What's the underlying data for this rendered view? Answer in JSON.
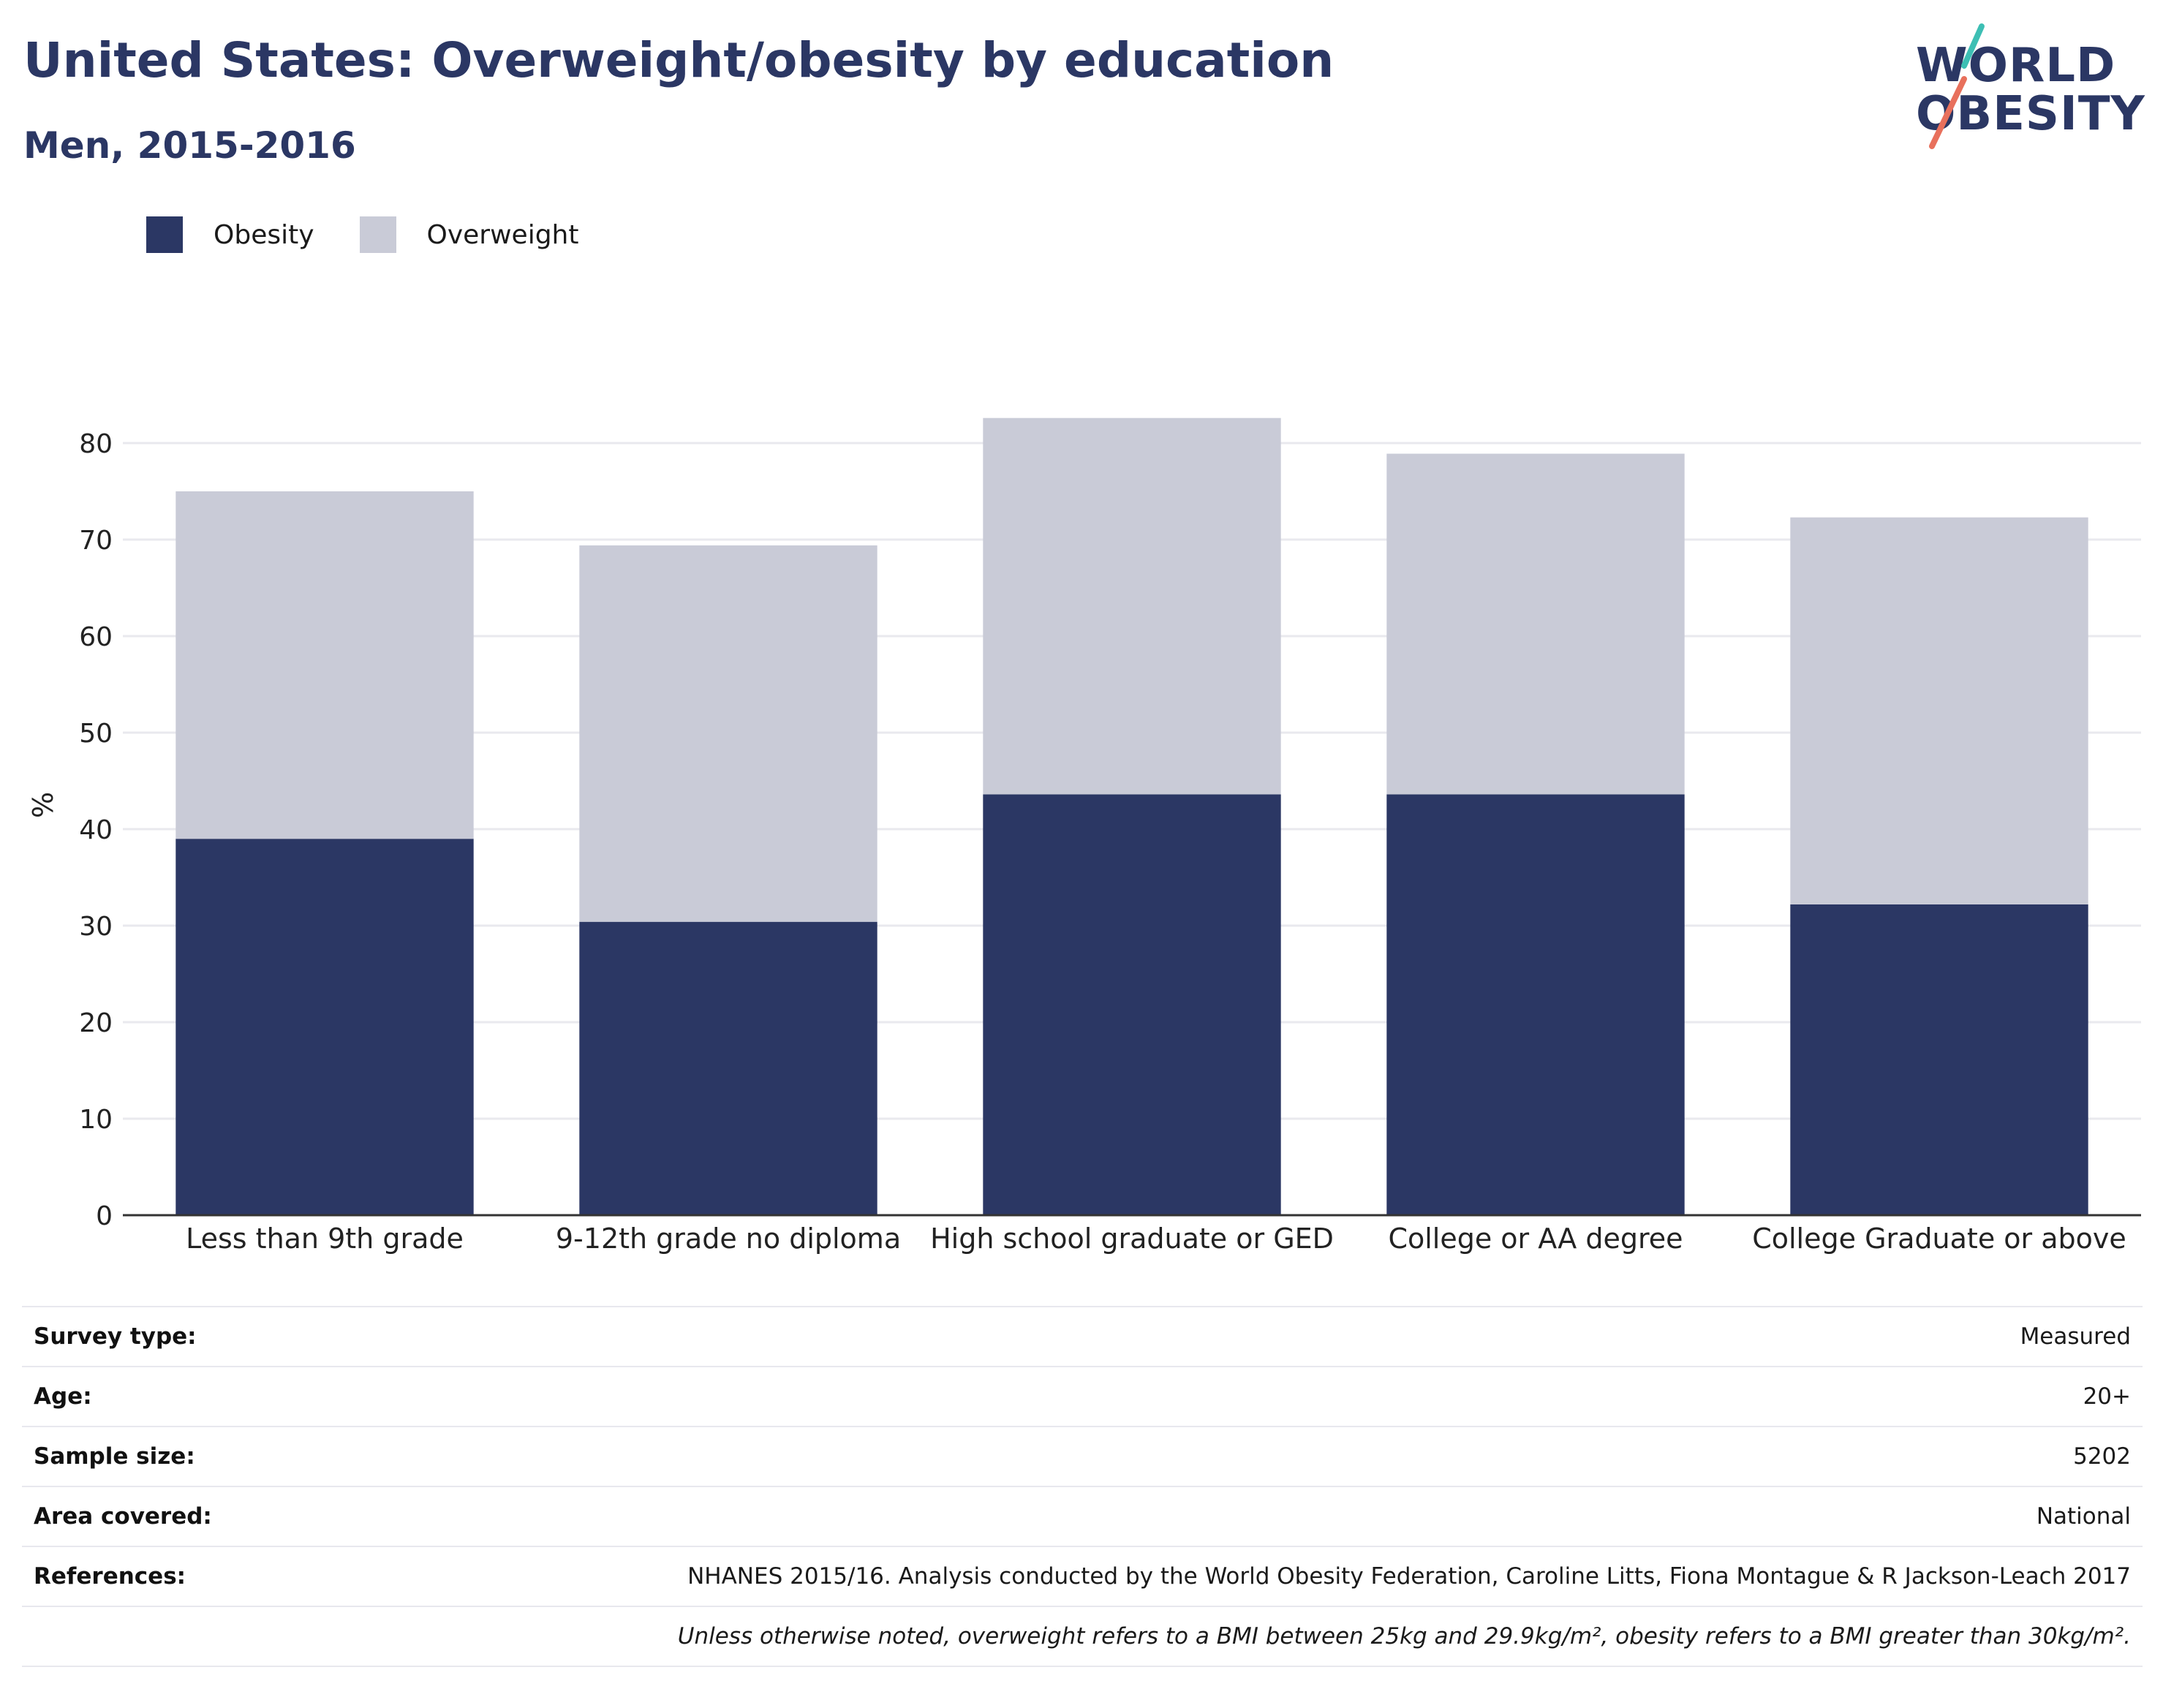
{
  "header": {
    "title": "United States: Overweight/obesity by education",
    "subtitle": "Men, 2015-2016"
  },
  "logo": {
    "line1": "WORLD",
    "line2": "OBESITY",
    "accent_colors": [
      "#3dbfb4",
      "#e8705c"
    ]
  },
  "legend": [
    {
      "label": "Obesity",
      "color": "#2b3764"
    },
    {
      "label": "Overweight",
      "color": "#c9cbd7"
    }
  ],
  "chart_data": {
    "type": "bar",
    "stacked": true,
    "categories": [
      "Less than 9th grade",
      "9-12th grade no diploma",
      "High school graduate or GED",
      "College or AA degree",
      "College Graduate or above"
    ],
    "series": [
      {
        "name": "Obesity",
        "color": "#2b3764",
        "values": [
          39.0,
          30.4,
          43.6,
          43.6,
          32.2
        ]
      },
      {
        "name": "Overweight",
        "color": "#c9cbd7",
        "values": [
          36.0,
          39.0,
          39.0,
          35.3,
          40.1
        ]
      }
    ],
    "ylabel": "%",
    "ylim": [
      0,
      85
    ],
    "yticks": [
      0,
      10,
      20,
      30,
      40,
      50,
      60,
      70,
      80
    ],
    "grid": true,
    "legend_position": "top-left"
  },
  "info": {
    "rows": [
      {
        "label": "Survey type:",
        "value": "Measured"
      },
      {
        "label": "Age:",
        "value": "20+"
      },
      {
        "label": "Sample size:",
        "value": "5202"
      },
      {
        "label": "Area covered:",
        "value": "National"
      },
      {
        "label": "References:",
        "value": "NHANES 2015/16. Analysis conducted by the World Obesity Federation, Caroline Litts, Fiona Montague & R Jackson-Leach 2017"
      }
    ],
    "note": "Unless otherwise noted, overweight refers to a BMI between 25kg and 29.9kg/m², obesity refers to a BMI greater than 30kg/m²."
  }
}
